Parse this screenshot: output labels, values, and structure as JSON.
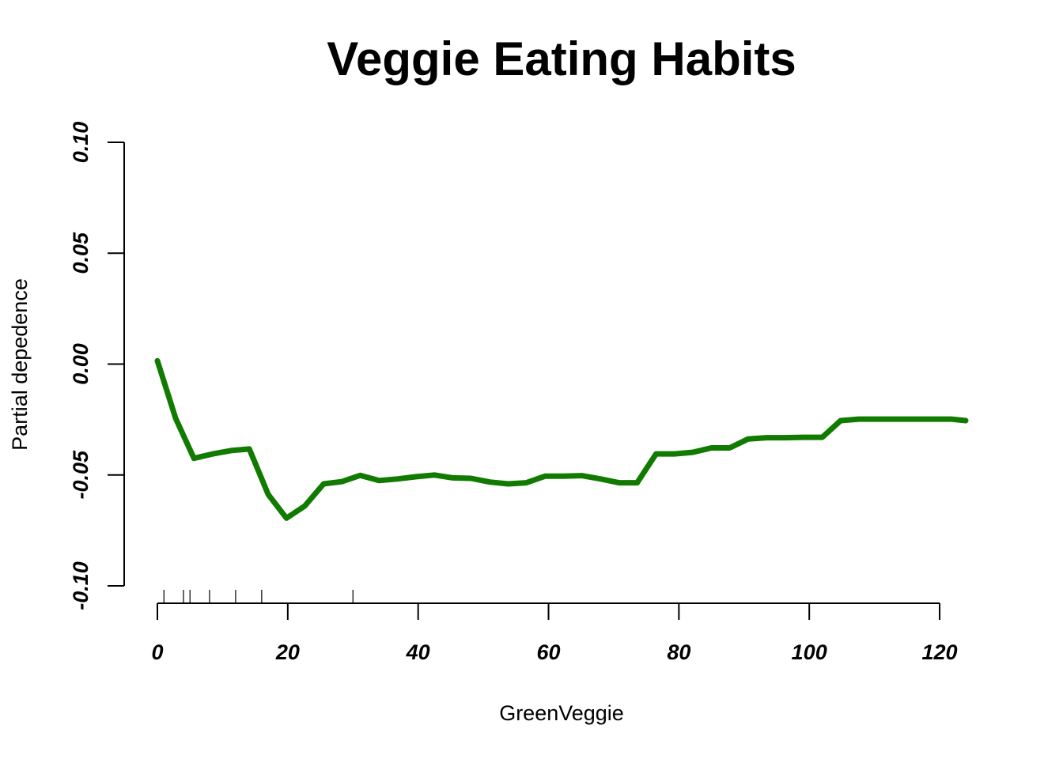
{
  "chart_data": {
    "type": "line",
    "title": "Veggie Eating Habits",
    "xlabel": "GreenVeggie",
    "ylabel": "Partial depedence",
    "xlim": [
      0,
      124
    ],
    "ylim": [
      -0.1,
      0.1
    ],
    "x_ticks": [
      0,
      20,
      40,
      60,
      80,
      100,
      120
    ],
    "x_tick_labels": [
      "0",
      "20",
      "40",
      "60",
      "80",
      "100",
      "120"
    ],
    "y_ticks": [
      -0.1,
      -0.05,
      0.0,
      0.05,
      0.1
    ],
    "y_tick_labels": [
      "-0.10",
      "-0.05",
      "0.00",
      "0.05",
      "0.10"
    ],
    "grid": false,
    "line_color": "#117a00",
    "rug_x": [
      1,
      4,
      5,
      8,
      12,
      16,
      30
    ],
    "series": [
      {
        "x": [
          0,
          2.8,
          5.6,
          8.5,
          11.3,
          14.1,
          17,
          19.8,
          22.6,
          25.5,
          28.3,
          31.1,
          34,
          36.8,
          39.6,
          42.5,
          45.3,
          48.1,
          51,
          53.8,
          56.6,
          59.5,
          62.3,
          65.1,
          68,
          70.8,
          73.6,
          76.5,
          79.3,
          82.1,
          85,
          87.8,
          90.6,
          93.5,
          96.3,
          99.1,
          102,
          104.8,
          107.6,
          110.5,
          113.3,
          116.1,
          119,
          121.8,
          124
        ],
        "y": [
          0.0015,
          -0.0245,
          -0.0425,
          -0.0405,
          -0.039,
          -0.0383,
          -0.0588,
          -0.0695,
          -0.064,
          -0.054,
          -0.053,
          -0.0502,
          -0.0525,
          -0.0518,
          -0.0508,
          -0.05,
          -0.0513,
          -0.0515,
          -0.0532,
          -0.054,
          -0.0535,
          -0.0505,
          -0.0505,
          -0.0503,
          -0.0518,
          -0.0535,
          -0.0535,
          -0.0405,
          -0.0405,
          -0.0398,
          -0.0378,
          -0.0378,
          -0.0338,
          -0.0332,
          -0.0332,
          -0.033,
          -0.033,
          -0.0255,
          -0.0248,
          -0.0248,
          -0.0248,
          -0.0248,
          -0.0248,
          -0.0248,
          -0.0255
        ]
      }
    ]
  }
}
